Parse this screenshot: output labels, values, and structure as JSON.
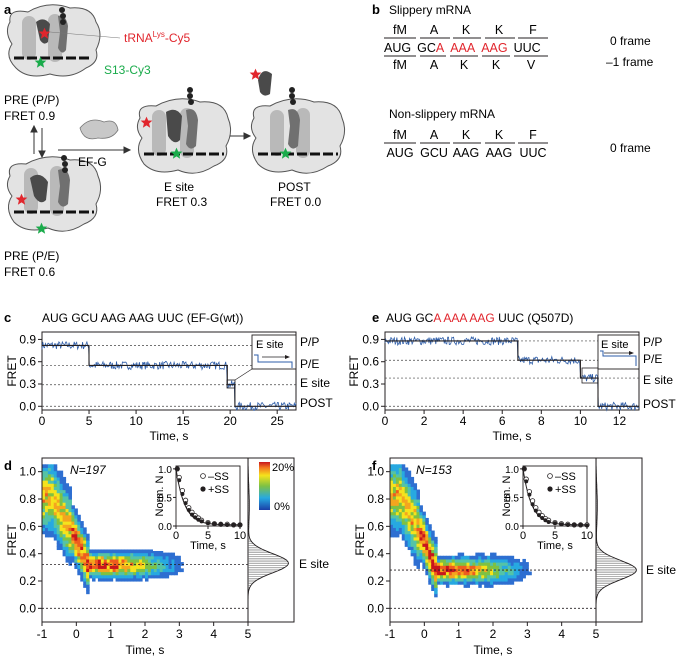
{
  "panel_a": {
    "letter": "a",
    "trna_label": "tRNA",
    "trna_sup": "Lys",
    "trna_suffix": "-Cy5",
    "s13_label": "S13-Cy3",
    "states": [
      {
        "name": "PRE (P/P)",
        "fret": "FRET 0.9"
      },
      {
        "name": "PRE (P/E)",
        "fret": "FRET 0.6"
      },
      {
        "name": "E site",
        "fret": "FRET 0.3"
      },
      {
        "name": "POST",
        "fret": "FRET 0.0"
      }
    ],
    "efg_label": "EF-G",
    "colors": {
      "cy5": "#e1262d",
      "cy3": "#1aab4b",
      "ribosome": "#dcdcdc"
    }
  },
  "panel_b": {
    "letter": "b",
    "slippery_title": "Slippery mRNA",
    "nonslippery_title": "Non-slippery mRNA",
    "slip_top": [
      "fM",
      "A",
      "K",
      "K",
      "F"
    ],
    "slip_codons": [
      "AUG",
      "GC",
      "A",
      "AAA",
      "AAG",
      "UUC"
    ],
    "slip_bottom": [
      "fM",
      "A",
      "K",
      "K",
      "V"
    ],
    "frame0": "0 frame",
    "frame_minus1": "–1 frame",
    "non_top": [
      "fM",
      "A",
      "K",
      "K",
      "F"
    ],
    "non_codons": [
      "AUG",
      "GCU",
      "AAG",
      "AAG",
      "UUC"
    ],
    "non_frame": "0 frame",
    "red": "#e1262d"
  },
  "panel_c": {
    "letter": "c",
    "title": "AUG GCU AAG AAG UUC (EF-G(wt))",
    "ylabel": "FRET",
    "xlabel": "Time, s",
    "state_labels": [
      "P/P",
      "P/E",
      "E site",
      "POST"
    ],
    "inset_label": "E site"
  },
  "panel_e": {
    "letter": "e",
    "title_black1": "AUG GC",
    "title_red": "A AAA AAG",
    "title_black2": " UUC (Q507D)",
    "ylabel": "FRET",
    "xlabel": "Time, s",
    "state_labels": [
      "P/P",
      "P/E",
      "E site",
      "POST"
    ],
    "inset_label": "E site"
  },
  "panel_d": {
    "letter": "d",
    "n_label": "N=197",
    "ylabel": "FRET",
    "xlabel": "Time, s",
    "hist_label": "E site",
    "scale_max": "20%",
    "scale_min": "0%",
    "inset": {
      "ylabel": "Norm. N",
      "xlabel": "Time, s",
      "legend_open": "–SS",
      "legend_filled": "+SS"
    }
  },
  "panel_f": {
    "letter": "f",
    "n_label": "N=153",
    "ylabel": "FRET",
    "xlabel": "Time, s",
    "hist_label": "E site",
    "inset": {
      "ylabel": "Norm. N",
      "xlabel": "Time, s",
      "legend_open": "–SS",
      "legend_filled": "+SS"
    }
  },
  "chart_data": [
    {
      "id": "c",
      "type": "line",
      "title": "AUG GCU AAG AAG UUC (EF-G(wt))",
      "xlabel": "Time, s",
      "ylabel": "FRET",
      "xlim": [
        0,
        27
      ],
      "ylim": [
        -0.05,
        1.0
      ],
      "xticks": [
        0,
        5,
        10,
        15,
        20,
        25
      ],
      "yticks": [
        0.0,
        0.3,
        0.6,
        0.9
      ],
      "state_levels": [
        0.82,
        0.55,
        0.29,
        0.0
      ],
      "series": [
        {
          "name": "idealized FRET",
          "x": [
            0,
            5,
            5,
            19.7,
            19.7,
            20.5,
            20.5,
            27
          ],
          "y": [
            0.82,
            0.82,
            0.55,
            0.55,
            0.29,
            0.29,
            0.0,
            0.0
          ]
        }
      ]
    },
    {
      "id": "e",
      "type": "line",
      "title": "AUG GCA AAA AAG UUC (Q507D)",
      "xlabel": "Time, s",
      "ylabel": "FRET",
      "xlim": [
        0,
        13
      ],
      "ylim": [
        -0.05,
        1.0
      ],
      "xticks": [
        0,
        2,
        4,
        6,
        8,
        10,
        12
      ],
      "yticks": [
        0.0,
        0.3,
        0.6,
        0.9
      ],
      "state_levels": [
        0.88,
        0.62,
        0.38,
        0.0
      ],
      "series": [
        {
          "name": "idealized FRET",
          "x": [
            0,
            6.8,
            6.8,
            10.0,
            10.0,
            10.9,
            10.9,
            13
          ],
          "y": [
            0.88,
            0.88,
            0.62,
            0.62,
            0.38,
            0.38,
            0.0,
            0.0
          ]
        }
      ]
    },
    {
      "id": "d",
      "type": "heatmap",
      "xlabel": "Time, s",
      "ylabel": "FRET",
      "xlim": [
        -1,
        5
      ],
      "ylim": [
        -0.1,
        1.1
      ],
      "xticks": [
        -1,
        0,
        1,
        2,
        3,
        4,
        5
      ],
      "yticks": [
        0.0,
        0.2,
        0.4,
        0.6,
        0.8,
        1.0
      ],
      "n": 197,
      "e_site_level": 0.32,
      "colorscale": {
        "min": "0%",
        "max": "20%"
      },
      "histogram": {
        "peak_fret": 0.33,
        "peak_percent": 20
      }
    },
    {
      "id": "f",
      "type": "heatmap",
      "xlabel": "Time, s",
      "ylabel": "FRET",
      "xlim": [
        -1,
        5
      ],
      "ylim": [
        -0.1,
        1.1
      ],
      "xticks": [
        -1,
        0,
        1,
        2,
        3,
        4,
        5
      ],
      "yticks": [
        0.0,
        0.2,
        0.4,
        0.6,
        0.8,
        1.0
      ],
      "n": 153,
      "e_site_level": 0.28,
      "histogram": {
        "peak_fret": 0.28,
        "peak_percent": 20
      }
    },
    {
      "id": "d_inset",
      "type": "scatter",
      "xlabel": "Time, s",
      "ylabel": "Norm. N",
      "xlim": [
        0,
        10
      ],
      "ylim": [
        0,
        1.05
      ],
      "xticks": [
        0,
        5,
        10
      ],
      "yticks": [
        0.0,
        0.5,
        1.0
      ],
      "series": [
        {
          "name": "–SS",
          "x": [
            0.2,
            0.5,
            1,
            1.5,
            2,
            2.5,
            3,
            3.5,
            4,
            5,
            6,
            7,
            8,
            9,
            10
          ],
          "y": [
            1.0,
            0.85,
            0.62,
            0.45,
            0.32,
            0.24,
            0.18,
            0.14,
            0.1,
            0.06,
            0.04,
            0.03,
            0.03,
            0.02,
            0.02
          ]
        },
        {
          "name": "+SS",
          "x": [
            0.2,
            0.5,
            1,
            1.5,
            2,
            2.5,
            3,
            3.5,
            4,
            5,
            6,
            7,
            8,
            9,
            10
          ],
          "y": [
            1.0,
            0.8,
            0.56,
            0.4,
            0.28,
            0.2,
            0.15,
            0.11,
            0.08,
            0.05,
            0.04,
            0.03,
            0.02,
            0.02,
            0.02
          ]
        }
      ]
    },
    {
      "id": "f_inset",
      "type": "scatter",
      "xlabel": "Time, s",
      "ylabel": "Norm. N",
      "xlim": [
        0,
        10
      ],
      "ylim": [
        0,
        1.05
      ],
      "xticks": [
        0,
        5,
        10
      ],
      "yticks": [
        0.0,
        0.5,
        1.0
      ],
      "series": [
        {
          "name": "–SS",
          "x": [
            0.2,
            0.5,
            1,
            1.5,
            2,
            2.5,
            3,
            3.5,
            4,
            5,
            6,
            7,
            8,
            9,
            10
          ],
          "y": [
            1.0,
            0.82,
            0.6,
            0.44,
            0.32,
            0.24,
            0.18,
            0.13,
            0.1,
            0.06,
            0.04,
            0.03,
            0.02,
            0.02,
            0.02
          ]
        },
        {
          "name": "+SS",
          "x": [
            0.2,
            0.5,
            1,
            1.5,
            2,
            2.5,
            3,
            3.5,
            4,
            5,
            6,
            7,
            8,
            9,
            10
          ],
          "y": [
            1.0,
            0.78,
            0.55,
            0.38,
            0.27,
            0.19,
            0.14,
            0.1,
            0.07,
            0.05,
            0.03,
            0.02,
            0.02,
            0.02,
            0.01
          ]
        }
      ]
    }
  ]
}
